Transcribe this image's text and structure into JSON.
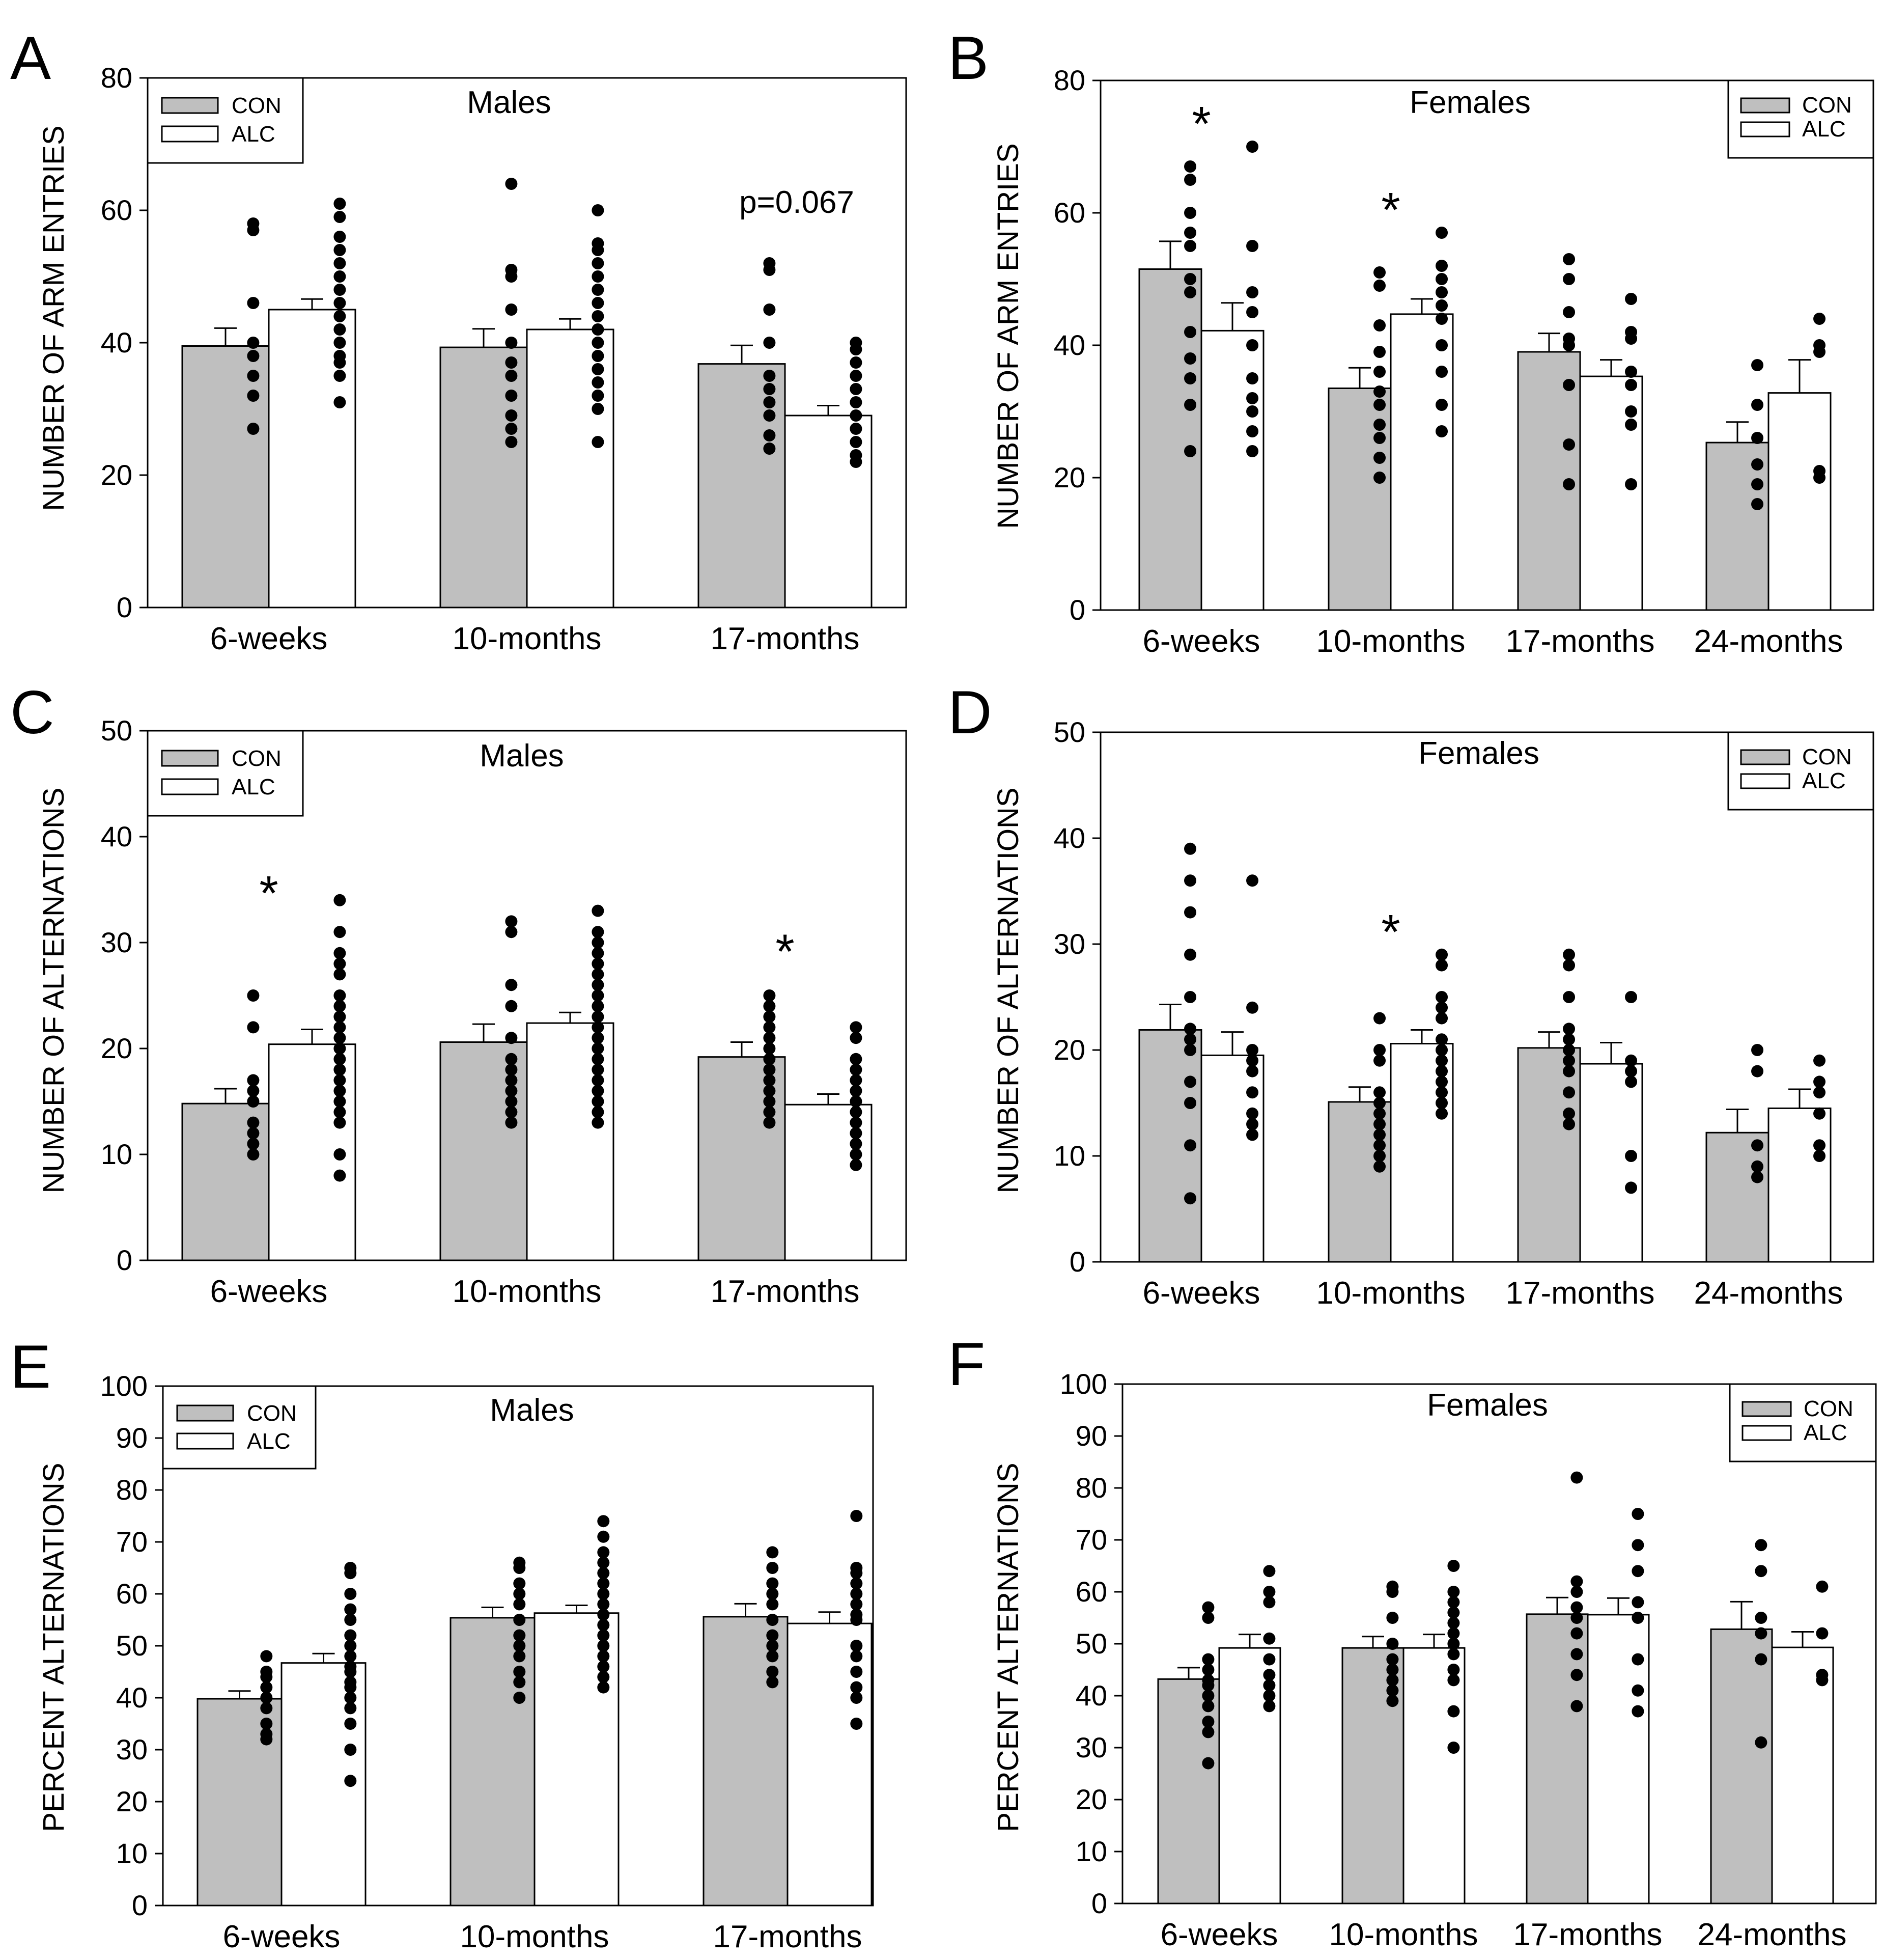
{
  "colors": {
    "con": "#bfbfbf",
    "alc": "#ffffff",
    "dot": "#000000",
    "stroke": "#000000"
  },
  "chart_data": [
    {
      "panel": "A",
      "type": "bar",
      "title": "Males",
      "ylabel": "NUMBER OF ARM ENTRIES",
      "xlabel": "",
      "ylim": [
        0,
        80
      ],
      "yticks": [
        0,
        20,
        40,
        60,
        80
      ],
      "yticks_label": [
        "0",
        "20",
        "40",
        "60",
        "80"
      ],
      "legend_position": "top-left",
      "legend": [
        "CON",
        "ALC"
      ],
      "categories": [
        "6-weeks",
        "10-months",
        "17-months"
      ],
      "series": [
        {
          "name": "CON",
          "values": [
            39.5,
            39.3,
            36.8
          ],
          "errors": [
            2.7,
            2.8,
            2.8
          ],
          "points": [
            [
              58,
              57,
              46,
              40,
              38,
              35,
              32,
              27
            ],
            [
              64,
              51,
              50,
              45,
              40,
              37,
              35,
              32,
              29,
              27,
              25
            ],
            [
              52,
              51,
              45,
              40,
              35,
              33,
              31,
              29,
              26,
              24
            ]
          ]
        },
        {
          "name": "ALC",
          "values": [
            45.0,
            42.0,
            29.0
          ],
          "errors": [
            1.6,
            1.6,
            1.5
          ],
          "points": [
            [
              61,
              59,
              56,
              54,
              52,
              50,
              48,
              46,
              44,
              42,
              40,
              38,
              37,
              35,
              31
            ],
            [
              60,
              55,
              54,
              52,
              50,
              48,
              46,
              44,
              42,
              40,
              38,
              36,
              34,
              32,
              30,
              25
            ],
            [
              40,
              39,
              37,
              35,
              33,
              31,
              29,
              27,
              25,
              23,
              22
            ]
          ]
        }
      ],
      "annotations": [
        {
          "text": "p=0.067",
          "category": "17-months",
          "y": 61
        }
      ],
      "significance": []
    },
    {
      "panel": "B",
      "type": "bar",
      "title": "Females",
      "ylabel": "NUMBER OF ARM ENTRIES",
      "xlabel": "",
      "ylim": [
        0,
        80
      ],
      "yticks": [
        0,
        20,
        40,
        60,
        80
      ],
      "yticks_label": [
        "0",
        "20",
        "40",
        "60",
        "80"
      ],
      "legend_position": "top-right",
      "legend": [
        "CON",
        "ALC"
      ],
      "categories": [
        "6-weeks",
        "10-months",
        "17-months",
        "24-months"
      ],
      "series": [
        {
          "name": "CON",
          "values": [
            51.5,
            33.5,
            39.0,
            25.3
          ],
          "errors": [
            4.2,
            3.1,
            2.8,
            3.1
          ],
          "points": [
            [
              67,
              65,
              60,
              57,
              55,
              50,
              48,
              42,
              38,
              35,
              31,
              24
            ],
            [
              51,
              49,
              43,
              39,
              36,
              33,
              31,
              28,
              26,
              23,
              20
            ],
            [
              53,
              50,
              45,
              41,
              40,
              34,
              25,
              19
            ],
            [
              37,
              31,
              26,
              22,
              19,
              16
            ]
          ]
        },
        {
          "name": "ALC",
          "values": [
            42.2,
            44.7,
            35.3,
            32.8
          ],
          "errors": [
            4.2,
            2.3,
            2.5,
            5.0
          ],
          "points": [
            [
              70,
              55,
              48,
              45,
              40,
              35,
              32,
              30,
              27,
              24
            ],
            [
              57,
              52,
              50,
              48,
              46,
              44,
              40,
              36,
              31,
              27
            ],
            [
              47,
              42,
              41,
              36,
              34,
              30,
              28,
              19
            ],
            [
              44,
              40,
              39,
              21,
              20
            ]
          ]
        }
      ],
      "annotations": [],
      "significance": [
        {
          "text": "*",
          "category": "6-weeks",
          "y": 74
        },
        {
          "text": "*",
          "category": "10-months",
          "y": 61
        }
      ]
    },
    {
      "panel": "C",
      "type": "bar",
      "title": "Males",
      "ylabel": "NUMBER OF ALTERNATIONS",
      "xlabel": "",
      "ylim": [
        0,
        50
      ],
      "yticks": [
        0,
        10,
        20,
        30,
        40,
        50
      ],
      "yticks_label": [
        "0",
        "10",
        "20",
        "30",
        "40",
        "50"
      ],
      "legend_position": "top-left",
      "legend": [
        "CON",
        "ALC"
      ],
      "categories": [
        "6-weeks",
        "10-months",
        "17-months"
      ],
      "series": [
        {
          "name": "CON",
          "values": [
            14.8,
            20.6,
            19.2
          ],
          "errors": [
            1.4,
            1.7,
            1.4
          ],
          "points": [
            [
              25,
              22,
              17,
              16,
              15,
              13,
              12,
              11,
              10
            ],
            [
              32,
              31,
              26,
              24,
              21,
              19,
              18,
              17,
              16,
              15,
              14,
              13
            ],
            [
              25,
              24,
              23,
              22,
              21,
              20,
              19,
              18,
              17,
              16,
              15,
              14,
              13
            ]
          ]
        },
        {
          "name": "ALC",
          "values": [
            20.4,
            22.4,
            14.7
          ],
          "errors": [
            1.4,
            1.0,
            1.0
          ],
          "points": [
            [
              34,
              31,
              29,
              28,
              27,
              25,
              24,
              23,
              22,
              21,
              20,
              19,
              18,
              17,
              16,
              15,
              14,
              13,
              10,
              8
            ],
            [
              33,
              31,
              30,
              29,
              28,
              27,
              26,
              25,
              24,
              23,
              22,
              21,
              20,
              19,
              18,
              17,
              16,
              15,
              14,
              13
            ],
            [
              22,
              21,
              19,
              18,
              17,
              16,
              15,
              14,
              13,
              12,
              11,
              10,
              9
            ]
          ]
        }
      ],
      "annotations": [],
      "significance": [
        {
          "text": "*",
          "category": "6-weeks",
          "y": 35
        },
        {
          "text": "*",
          "category": "17-months",
          "y": 29.5
        }
      ]
    },
    {
      "panel": "D",
      "type": "bar",
      "title": "Females",
      "ylabel": "NUMBER OF ALTERNATIONS",
      "xlabel": "",
      "ylim": [
        0,
        50
      ],
      "yticks": [
        0,
        10,
        20,
        30,
        40,
        50
      ],
      "yticks_label": [
        "0",
        "10",
        "20",
        "30",
        "40",
        "50"
      ],
      "legend_position": "top-right",
      "legend": [
        "CON",
        "ALC"
      ],
      "categories": [
        "6-weeks",
        "10-months",
        "17-months",
        "24-months"
      ],
      "series": [
        {
          "name": "CON",
          "values": [
            21.9,
            15.1,
            20.2,
            12.2
          ],
          "errors": [
            2.4,
            1.4,
            1.5,
            2.2
          ],
          "points": [
            [
              39,
              36,
              33,
              29,
              25,
              22,
              21,
              20,
              17,
              15,
              11,
              6
            ],
            [
              23,
              20,
              19,
              16,
              15,
              14,
              13,
              12,
              11,
              10,
              9
            ],
            [
              29,
              28,
              25,
              22,
              21,
              20,
              19,
              18,
              16,
              14,
              13
            ],
            [
              20,
              18,
              11,
              9,
              8
            ]
          ]
        },
        {
          "name": "ALC",
          "values": [
            19.5,
            20.6,
            18.7,
            14.5
          ],
          "errors": [
            2.2,
            1.3,
            2.0,
            1.8
          ],
          "points": [
            [
              36,
              24,
              20,
              19,
              18,
              16,
              14,
              13,
              12
            ],
            [
              29,
              28,
              25,
              24,
              23,
              21,
              20,
              19,
              18,
              17,
              16,
              15,
              14
            ],
            [
              25,
              19,
              18,
              17,
              10,
              7
            ],
            [
              19,
              17,
              16,
              14,
              11,
              10
            ]
          ]
        }
      ],
      "annotations": [],
      "significance": [
        {
          "text": "*",
          "category": "10-months",
          "y": 31.5
        }
      ]
    },
    {
      "panel": "E",
      "type": "bar",
      "title": "Males",
      "ylabel": "PERCENT ALTERNATIONS",
      "xlabel": "",
      "ylim": [
        0,
        100
      ],
      "yticks": [
        0,
        10,
        20,
        30,
        40,
        50,
        60,
        70,
        80,
        90,
        100
      ],
      "yticks_label": [
        "0",
        "10",
        "20",
        "30",
        "40",
        "50",
        "60",
        "70",
        "80",
        "90",
        "100"
      ],
      "legend_position": "top-left",
      "legend": [
        "CON",
        "ALC"
      ],
      "categories": [
        "6-weeks",
        "10-months",
        "17-months"
      ],
      "series": [
        {
          "name": "CON",
          "values": [
            39.8,
            55.4,
            55.6
          ],
          "errors": [
            1.5,
            2.0,
            2.5
          ],
          "points": [
            [
              48,
              45,
              44,
              42,
              40,
              38,
              35,
              33,
              32
            ],
            [
              66,
              65,
              62,
              60,
              58,
              55,
              52,
              50,
              48,
              45,
              43,
              40
            ],
            [
              68,
              65,
              62,
              60,
              58,
              55,
              52,
              50,
              48,
              45,
              43
            ]
          ]
        },
        {
          "name": "ALC",
          "values": [
            46.7,
            56.3,
            54.3
          ],
          "errors": [
            1.8,
            1.5,
            2.2
          ],
          "points": [
            [
              65,
              64,
              60,
              57,
              55,
              52,
              50,
              48,
              46,
              45,
              43,
              42,
              40,
              38,
              35,
              30,
              24
            ],
            [
              74,
              71,
              68,
              66,
              64,
              62,
              60,
              58,
              56,
              54,
              52,
              50,
              48,
              46,
              44,
              42
            ],
            [
              75,
              65,
              64,
              62,
              60,
              58,
              56,
              55,
              50,
              48,
              45,
              42,
              40,
              35
            ]
          ]
        }
      ],
      "annotations": [],
      "significance": []
    },
    {
      "panel": "F",
      "type": "bar",
      "title": "Females",
      "ylabel": "PERCENT ALTERNATIONS",
      "xlabel": "",
      "ylim": [
        0,
        100
      ],
      "yticks": [
        0,
        10,
        20,
        30,
        40,
        50,
        60,
        70,
        80,
        90,
        100
      ],
      "yticks_label": [
        "0",
        "10",
        "20",
        "30",
        "40",
        "50",
        "60",
        "70",
        "80",
        "90",
        "100"
      ],
      "legend_position": "top-right",
      "legend": [
        "CON",
        "ALC"
      ],
      "categories": [
        "6-weeks",
        "10-months",
        "17-months",
        "24-months"
      ],
      "series": [
        {
          "name": "CON",
          "values": [
            43.2,
            49.2,
            55.7,
            52.8
          ],
          "errors": [
            2.2,
            2.2,
            3.2,
            5.3
          ],
          "points": [
            [
              57,
              55,
              47,
              45,
              43,
              42,
              40,
              38,
              35,
              33,
              27
            ],
            [
              61,
              60,
              55,
              50,
              47,
              45,
              43,
              41,
              39
            ],
            [
              82,
              62,
              60,
              57,
              55,
              52,
              48,
              44,
              38
            ],
            [
              69,
              64,
              55,
              52,
              47,
              31
            ]
          ]
        },
        {
          "name": "ALC",
          "values": [
            49.2,
            49.2,
            55.6,
            49.3
          ],
          "errors": [
            2.6,
            2.6,
            3.2,
            3.0
          ],
          "points": [
            [
              64,
              60,
              58,
              51,
              47,
              44,
              42,
              40,
              38
            ],
            [
              65,
              60,
              58,
              56,
              54,
              52,
              50,
              48,
              45,
              43,
              37,
              30
            ],
            [
              75,
              69,
              64,
              58,
              55,
              47,
              41,
              37
            ],
            [
              61,
              52,
              44,
              43
            ]
          ]
        }
      ],
      "annotations": [],
      "significance": []
    }
  ]
}
